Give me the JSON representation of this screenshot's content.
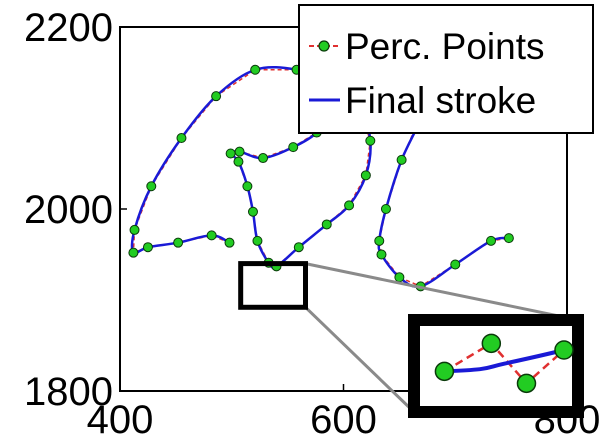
{
  "chart_data": {
    "type": "line",
    "title": "",
    "xlabel": "",
    "ylabel": "",
    "xlim": [
      400,
      800
    ],
    "ylim": [
      1800,
      2200
    ],
    "xticks": [
      "400",
      "600",
      "800"
    ],
    "yticks": [
      "1800",
      "2000",
      "2200"
    ],
    "legend": {
      "position": "top-right",
      "entries": [
        "Perc. Points",
        "Final stroke"
      ]
    },
    "colors": {
      "stroke": "#1a1ad6",
      "points_fill": "#22cc22",
      "points_edge": "#0a3a0a",
      "perc_line": "#e03030",
      "zoom_box": "#000000",
      "connector": "#8a8a8a"
    },
    "series": [
      {
        "name": "Perc. Points",
        "type": "scatter",
        "x": [
          498,
          482,
          452,
          425,
          412,
          413,
          428,
          455,
          486,
          521,
          558,
          589,
          615,
          624,
          620,
          605,
          585,
          560,
          540,
          533,
          523,
          519,
          514,
          506,
          499,
          507,
          528,
          555,
          576,
          581,
          585,
          605,
          627,
          646,
          661,
          672,
          652,
          638,
          632,
          634,
          650,
          669,
          700,
          732,
          748
        ],
        "y": [
          1963,
          1971,
          1963,
          1958,
          1952,
          1977,
          2025,
          2078,
          2124,
          2153,
          2153,
          2138,
          2109,
          2075,
          2037,
          2004,
          1983,
          1958,
          1937,
          1941,
          1965,
          1997,
          2025,
          2052,
          2061,
          2063,
          2056,
          2068,
          2084,
          2100,
          2110,
          2128,
          2145,
          2148,
          2141,
          2111,
          2054,
          2000,
          1965,
          1950,
          1925,
          1915,
          1939,
          1965,
          1968
        ]
      },
      {
        "name": "Final stroke",
        "type": "line",
        "x": [
          498,
          482,
          452,
          425,
          412,
          413,
          428,
          455,
          486,
          521,
          558,
          589,
          615,
          624,
          620,
          605,
          585,
          560,
          540,
          533,
          523,
          519,
          514,
          506,
          499,
          507,
          528,
          555,
          576,
          581,
          585,
          605,
          627,
          646,
          661,
          672,
          652,
          638,
          632,
          634,
          650,
          669,
          700,
          732,
          748
        ],
        "y": [
          1963,
          1971,
          1963,
          1958,
          1952,
          1977,
          2025,
          2078,
          2124,
          2153,
          2153,
          2138,
          2109,
          2075,
          2037,
          2004,
          1983,
          1958,
          1937,
          1941,
          1965,
          1997,
          2025,
          2052,
          2061,
          2063,
          2056,
          2068,
          2084,
          2100,
          2110,
          2128,
          2145,
          2148,
          2141,
          2111,
          2054,
          2000,
          1965,
          1950,
          1925,
          1915,
          1939,
          1965,
          1968
        ]
      }
    ],
    "zoom_inset": {
      "region": {
        "x": [
          508,
          566
        ],
        "y": [
          1892,
          1940
        ]
      },
      "points": [
        [
          515,
          1912
        ],
        [
          535,
          1933
        ],
        [
          550,
          1903
        ],
        [
          566,
          1928
        ]
      ]
    }
  }
}
